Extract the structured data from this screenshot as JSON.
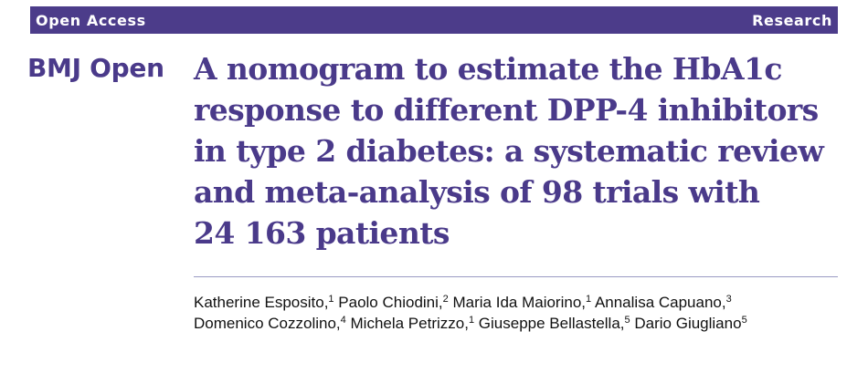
{
  "header": {
    "left_label": "Open Access",
    "right_label": "Research"
  },
  "journal": {
    "name": "BMJ Open"
  },
  "article": {
    "title_lines": [
      "A nomogram to estimate the HbA1c",
      "response to different DPP-4 inhibitors",
      "in type 2 diabetes: a systematic review",
      "and meta-analysis of 98 trials with",
      "24 163 patients"
    ],
    "author_lines": [
      [
        {
          "name": "Katherine Esposito,",
          "aff": "1"
        },
        {
          "name": "Paolo Chiodini,",
          "aff": "2"
        },
        {
          "name": "Maria Ida Maiorino,",
          "aff": "1"
        },
        {
          "name": "Annalisa Capuano,",
          "aff": "3"
        }
      ],
      [
        {
          "name": "Domenico Cozzolino,",
          "aff": "4"
        },
        {
          "name": "Michela Petrizzo,",
          "aff": "1"
        },
        {
          "name": "Giuseppe Bellastella,",
          "aff": "5"
        },
        {
          "name": "Dario Giugliano",
          "aff": "5"
        }
      ]
    ]
  },
  "colors": {
    "brand": "#4a3a8a",
    "bar": "#4c3c8a",
    "divider": "#9a9bc4"
  }
}
